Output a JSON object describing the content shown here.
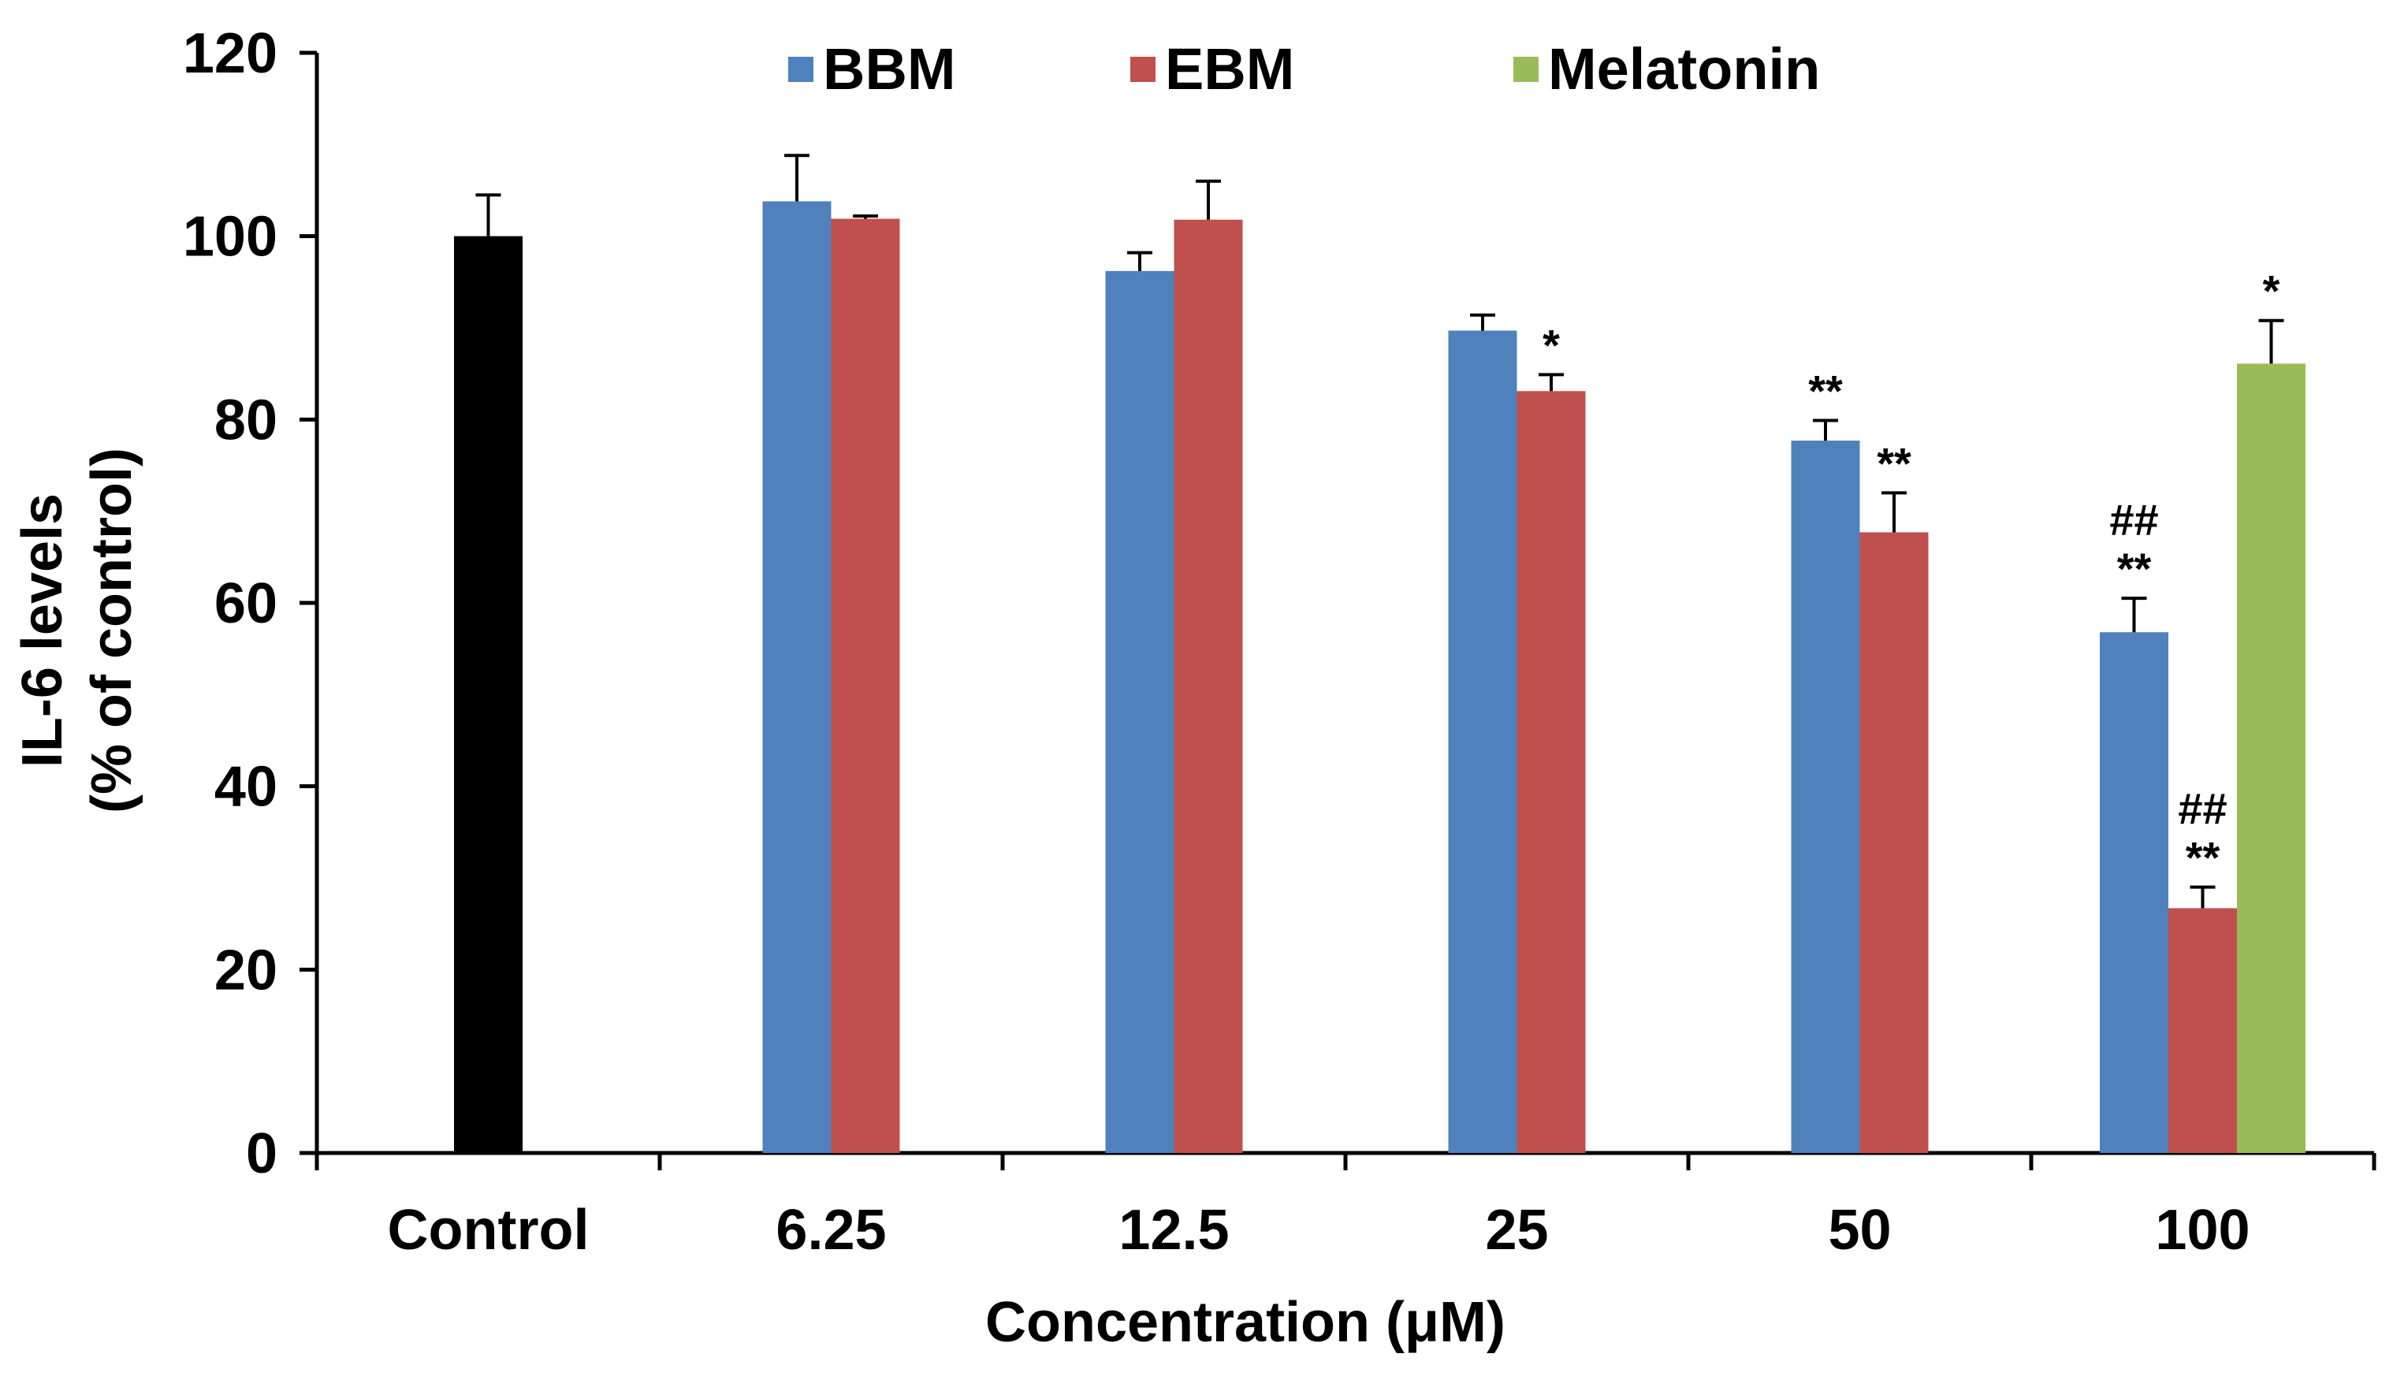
{
  "chart_data": {
    "type": "bar",
    "title": "",
    "xlabel": "Concentration (μM)",
    "ylabel_lines": [
      "IL-6 levels",
      "(% of control)"
    ],
    "ylim": [
      0,
      120
    ],
    "y_ticks": [
      0,
      20,
      40,
      60,
      80,
      100,
      120
    ],
    "categories": [
      "Control",
      "6.25",
      "12.5",
      "25",
      "50",
      "100"
    ],
    "legend_position": "top-center",
    "series": [
      {
        "name": "Control",
        "color": "#000000",
        "show_in_legend": false,
        "values": [
          100,
          null,
          null,
          null,
          null,
          null
        ],
        "errors": [
          4.5,
          null,
          null,
          null,
          null,
          null
        ],
        "annotations": [
          [],
          [],
          [],
          [],
          [],
          []
        ]
      },
      {
        "name": "BBM",
        "color": "#4F81BD",
        "show_in_legend": true,
        "values": [
          null,
          103.8,
          96.2,
          89.7,
          77.7,
          56.8
        ],
        "errors": [
          null,
          5.0,
          2.0,
          1.7,
          2.2,
          3.7
        ],
        "annotations": [
          [],
          [],
          [],
          [],
          [
            "**"
          ],
          [
            "##",
            "**"
          ]
        ]
      },
      {
        "name": "EBM",
        "color": "#C0504D",
        "show_in_legend": true,
        "values": [
          null,
          101.9,
          101.8,
          83.1,
          67.7,
          26.7
        ],
        "errors": [
          null,
          0.3,
          4.2,
          1.8,
          4.3,
          2.3
        ],
        "annotations": [
          [],
          [],
          [],
          [
            "*"
          ],
          [
            "**"
          ],
          [
            "##",
            "**"
          ]
        ]
      },
      {
        "name": "Melatonin",
        "color": "#9BBB59",
        "show_in_legend": true,
        "values": [
          null,
          null,
          null,
          null,
          null,
          86.1
        ],
        "errors": [
          null,
          null,
          null,
          null,
          null,
          4.7
        ],
        "annotations": [
          [],
          [],
          [],
          [],
          [],
          [
            "*"
          ]
        ]
      }
    ]
  }
}
